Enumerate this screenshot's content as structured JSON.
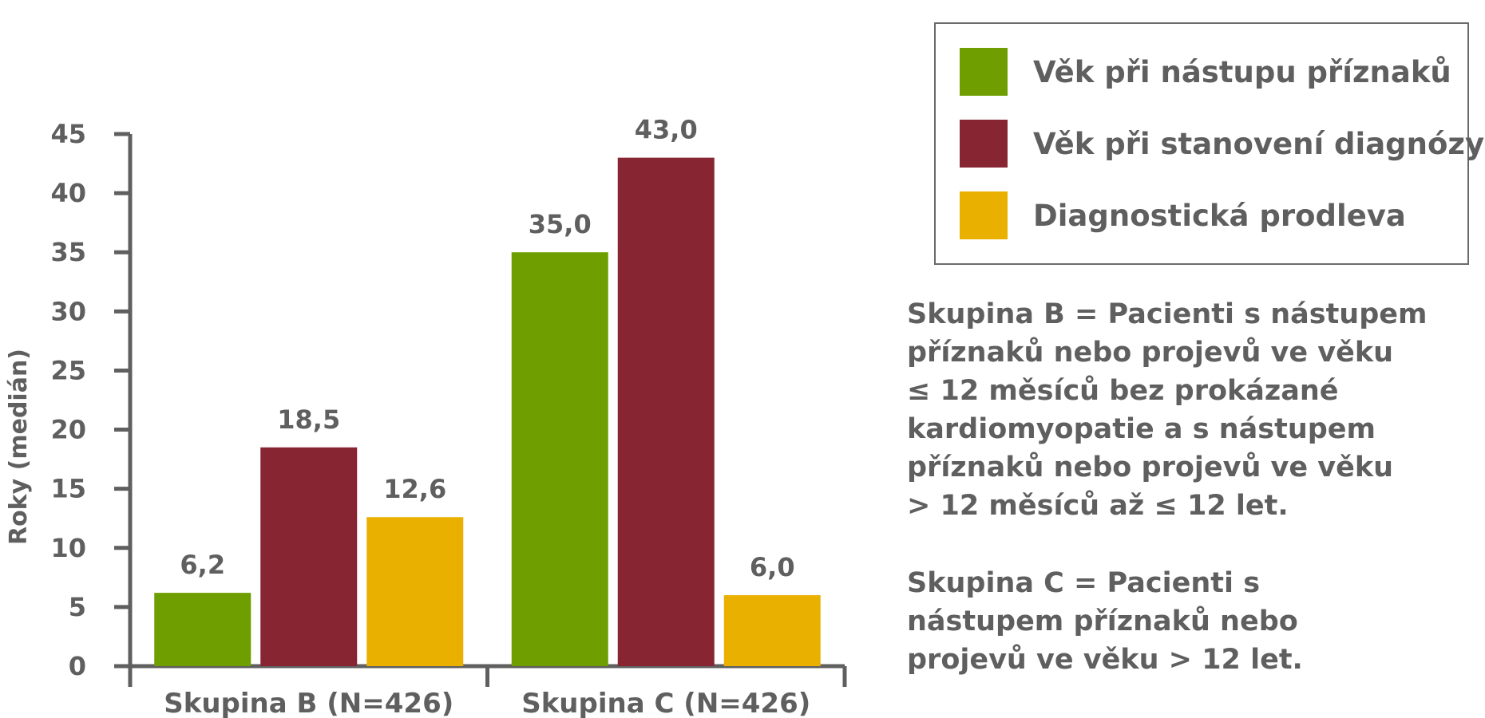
{
  "chart_data": {
    "type": "bar",
    "categories": [
      "Skupina B (N=426)",
      "Skupina C (N=426)"
    ],
    "series": [
      {
        "name": "Věk při nástupu příznaků",
        "color": "#6e9e00",
        "values": [
          6.2,
          35.0
        ],
        "labels": [
          "6,2",
          "35,0"
        ]
      },
      {
        "name": "Věk při stanovení diagnózy",
        "color": "#872532",
        "values": [
          18.5,
          43.0
        ],
        "labels": [
          "18,5",
          "43,0"
        ]
      },
      {
        "name": "Diagnostická prodleva",
        "color": "#e9b000",
        "values": [
          12.6,
          6.0
        ],
        "labels": [
          "12,6",
          "6,0"
        ]
      }
    ],
    "ylabel": "Roky (medián)",
    "ylim": [
      0,
      45
    ],
    "yticks": [
      0,
      5,
      10,
      15,
      20,
      25,
      30,
      35,
      40,
      45
    ],
    "legend_position": "top-right",
    "grid": false
  },
  "notes": [
    "Skupina B = Pacienti s nástupem\npříznaků nebo projevů ve věku\n≤ 12 měsíců bez prokázané\nkardiomyopatie a s nástupem\npříznaků nebo projevů ve věku\n> 12 měsíců až ≤ 12 let.",
    "Skupina C = Pacienti s\nnástupem příznaků nebo\nprojevů ve věku > 12 let."
  ],
  "colors": {
    "axis": "#5f5f5f",
    "text": "#5f5f5f"
  }
}
